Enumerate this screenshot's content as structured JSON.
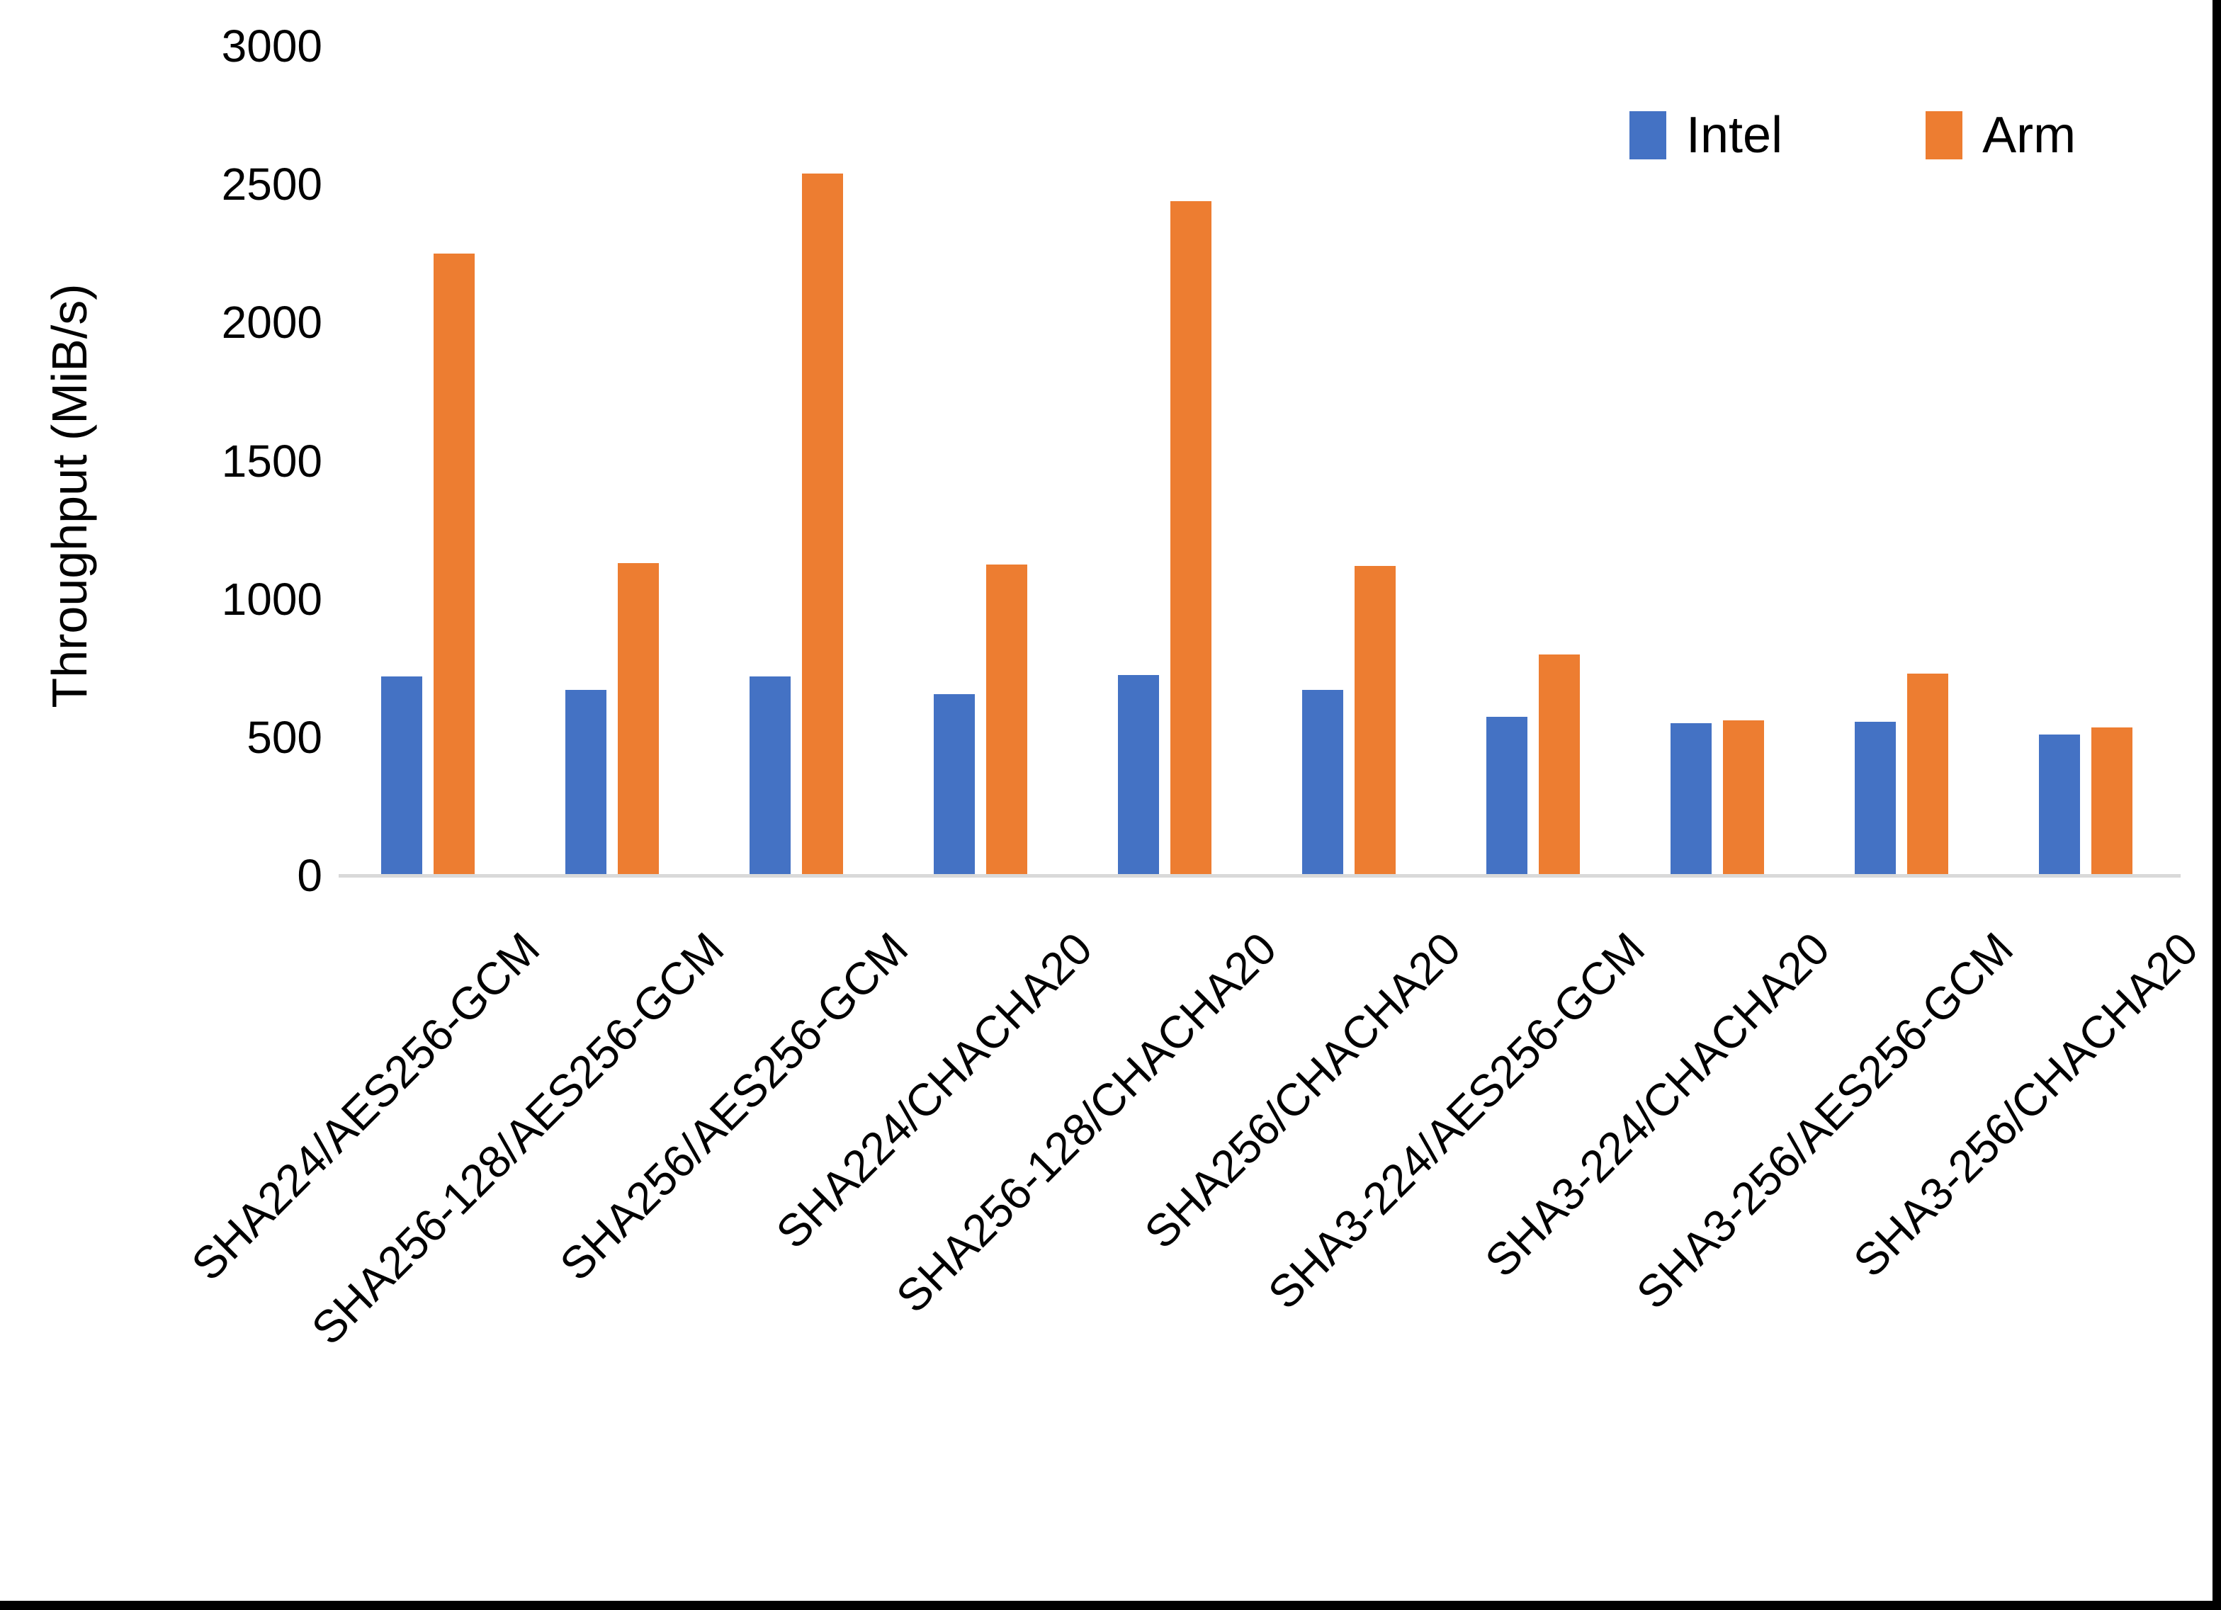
{
  "figure": {
    "y_axis_title": "Throughput (MiB/s)"
  },
  "legend": {
    "items": [
      {
        "label": "Intel",
        "color": "#4472C4"
      },
      {
        "label": "Arm",
        "color": "#ED7D31"
      }
    ]
  },
  "chart_data": {
    "type": "bar",
    "title": "",
    "xlabel": "",
    "ylabel": "Throughput (MiB/s)",
    "categories": [
      "SHA224/AES256-GCM",
      "SHA256-128/AES256-GCM",
      "SHA256/AES256-GCM",
      "SHA224/CHACHA20",
      "SHA256-128/CHACHA20",
      "SHA256/CHACHA20",
      "SHA3-224/AES256-GCM",
      "SHA3-224/CHACHA20",
      "SHA3-256/AES256-GCM",
      "SHA3-256/CHACHA20"
    ],
    "series": [
      {
        "name": "Intel",
        "color": "#4472C4",
        "values": [
          720,
          670,
          720,
          655,
          725,
          670,
          575,
          550,
          555,
          510
        ]
      },
      {
        "name": "Arm",
        "color": "#ED7D31",
        "values": [
          2250,
          1130,
          2540,
          1125,
          2440,
          1120,
          800,
          560,
          730,
          535
        ]
      }
    ],
    "ylim": [
      0,
      3000
    ],
    "yticks": [
      0,
      500,
      1000,
      1500,
      2000,
      2500,
      3000
    ],
    "grid": false,
    "legend_position": "top-right",
    "baseline_color": "#D9D9D9"
  }
}
